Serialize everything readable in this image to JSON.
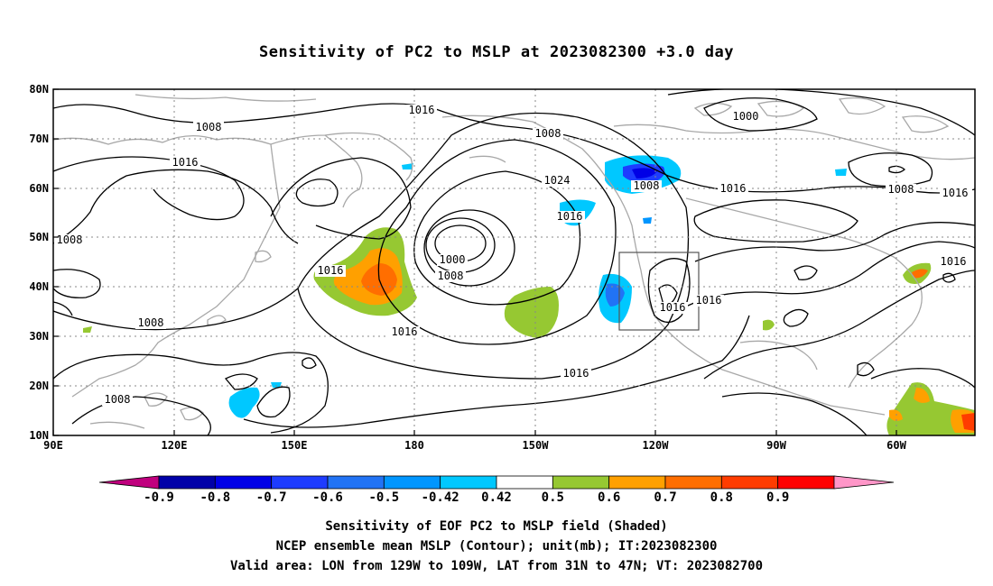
{
  "title": "Sensitivity of PC2 to MSLP at 2023082300 +3.0 day",
  "lat_labels": [
    "80N",
    "70N",
    "60N",
    "50N",
    "40N",
    "30N",
    "20N",
    "10N"
  ],
  "lon_labels": [
    "90E",
    "120E",
    "150E",
    "180",
    "150W",
    "120W",
    "90W",
    "60W"
  ],
  "contour_labels": [
    "1016",
    "1008",
    "1016",
    "1008",
    "1000",
    "1016",
    "1008",
    "1016",
    "1024",
    "1008",
    "1016",
    "1008",
    "1016",
    "1000",
    "1008",
    "1016",
    "1008",
    "1016",
    "1016",
    "1016",
    "1008",
    "1008",
    "1016",
    "1016"
  ],
  "colorbar": {
    "labels": [
      "-0.9",
      "-0.8",
      "-0.7",
      "-0.6",
      "-0.5",
      "-0.42",
      "0.42",
      "0.5",
      "0.6",
      "0.7",
      "0.8",
      "0.9"
    ],
    "colors": [
      "#c0007e",
      "#0000a8",
      "#0000e6",
      "#1e3cff",
      "#2173f5",
      "#0096ff",
      "#00c8ff",
      "#ffffff",
      "#96c832",
      "#ffa000",
      "#ff6e00",
      "#ff3c00",
      "#ff0000",
      "#ff96c8"
    ]
  },
  "captions": {
    "line1": "Sensitivity of EOF PC2 to MSLP field (Shaded)",
    "line2": "NCEP ensemble mean MSLP (Contour); unit(mb); IT:2023082300",
    "line3": "Valid area: LON from 129W to 109W, LAT from 31N to 47N; VT: 2023082700"
  }
}
